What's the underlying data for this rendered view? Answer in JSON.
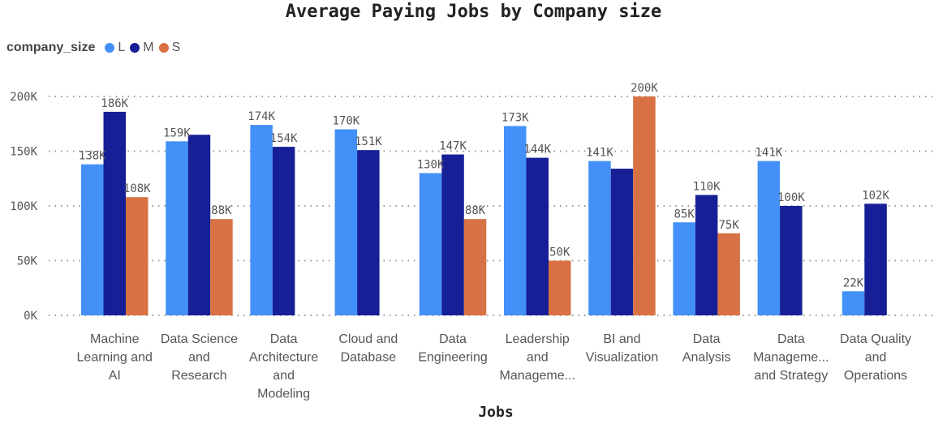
{
  "chart_data": {
    "type": "bar",
    "title": "Average Paying Jobs by Company size",
    "xlabel": "Jobs",
    "ylabel": "",
    "legend_title": "company_size",
    "legend_position": "top-left",
    "grid": true,
    "ylim": [
      0,
      200000
    ],
    "yticks": [
      {
        "value": 0,
        "label": "0K"
      },
      {
        "value": 50000,
        "label": "50K"
      },
      {
        "value": 100000,
        "label": "100K"
      },
      {
        "value": 150000,
        "label": "150K"
      },
      {
        "value": 200000,
        "label": "200K"
      }
    ],
    "categories": [
      [
        "Machine",
        "Learning and",
        "AI"
      ],
      [
        "Data Science",
        "and",
        "Research"
      ],
      [
        "Data",
        "Architecture",
        "and",
        "Modeling"
      ],
      [
        "Cloud and",
        "Database"
      ],
      [
        "Data",
        "Engineering"
      ],
      [
        "Leadership",
        "and",
        "Manageme..."
      ],
      [
        "BI and",
        "Visualization"
      ],
      [
        "Data",
        "Analysis"
      ],
      [
        "Data",
        "Manageme...",
        "and Strategy"
      ],
      [
        "Data Quality",
        "and",
        "Operations"
      ]
    ],
    "series": [
      {
        "name": "L",
        "color": "#4390f8",
        "values": [
          138000,
          159000,
          174000,
          170000,
          130000,
          173000,
          141000,
          85000,
          141000,
          22000
        ],
        "labels": [
          "138K",
          "159K",
          "174K",
          "170K",
          "130K",
          "173K",
          "141K",
          "85K",
          "141K",
          "22K"
        ]
      },
      {
        "name": "M",
        "color": "#161f96",
        "values": [
          186000,
          165000,
          154000,
          151000,
          147000,
          144000,
          134000,
          110000,
          100000,
          102000
        ],
        "labels": [
          "186K",
          "",
          "154K",
          "151K",
          "147K",
          "144K",
          "",
          "110K",
          "100K",
          "102K"
        ]
      },
      {
        "name": "S",
        "color": "#d87244",
        "values": [
          108000,
          88000,
          null,
          null,
          88000,
          50000,
          200000,
          75000,
          null,
          null
        ],
        "labels": [
          "108K",
          "88K",
          "",
          "",
          "88K",
          "50K",
          "200K",
          "75K",
          "",
          ""
        ]
      }
    ]
  }
}
